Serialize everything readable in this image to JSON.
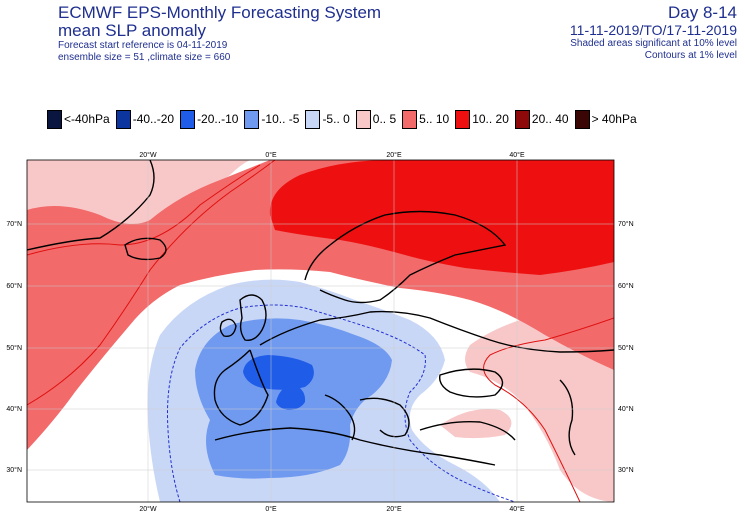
{
  "header": {
    "title": "ECMWF EPS-Monthly Forecasting System",
    "subtitle": "mean SLP anomaly",
    "forecast_start": "Forecast start reference is 04-11-2019",
    "ensemble": "ensemble size = 51  ,climate size = 660",
    "day_range": "Day 8-14",
    "period": "11-11-2019/TO/17-11-2019",
    "shaded_note": "Shaded areas significant at 10% level",
    "contour_note": "Contours at 1% level"
  },
  "legend": [
    {
      "label": "<-40hPa",
      "color": "#0a1640"
    },
    {
      "label": "-40..-20",
      "color": "#0c35a0"
    },
    {
      "label": "-20..-10",
      "color": "#1f5ce8"
    },
    {
      "label": "-10.. -5",
      "color": "#6f9af0"
    },
    {
      "label": "-5..  0",
      "color": "#c9d7f7"
    },
    {
      "label": "0..  5",
      "color": "#f8c8c8"
    },
    {
      "label": "5..  10",
      "color": "#f26a6a"
    },
    {
      "label": "10..  20",
      "color": "#ee1010"
    },
    {
      "label": "20..  40",
      "color": "#8e0a0a"
    },
    {
      "label": "> 40hPa",
      "color": "#3a0606"
    }
  ],
  "axes": {
    "top_ticks": [
      "20°W",
      "0°E",
      "20°E",
      "40°E"
    ],
    "bottom_ticks": [
      "20°W",
      "0°E",
      "20°E",
      "40°E"
    ],
    "left_ticks": [
      "70°N",
      "60°N",
      "50°N",
      "40°N",
      "30°N"
    ],
    "right_ticks": [
      "70°N",
      "60°N",
      "50°N",
      "40°N",
      "30°N"
    ]
  },
  "colors": {
    "pos_light": "#f8c8c8",
    "pos_mid": "#f26a6a",
    "pos_strong": "#ee1010",
    "neg_light": "#c9d7f7",
    "neg_mid": "#6f9af0",
    "neg_strong": "#1f5ce8",
    "contour_pos": "#e01010",
    "contour_neg": "#2030d0"
  }
}
